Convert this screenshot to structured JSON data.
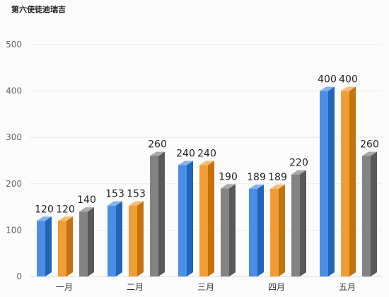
{
  "chart_data": {
    "type": "bar",
    "title": "第六使徒迪瑞吉",
    "categories": [
      "一月",
      "二月",
      "三月",
      "四月",
      "五月"
    ],
    "series": [
      {
        "values": [
          120,
          153,
          240,
          189,
          400
        ],
        "color": "#2a7be0"
      },
      {
        "values": [
          120,
          153,
          240,
          189,
          400
        ],
        "color": "#ed8c13"
      },
      {
        "values": [
          140,
          260,
          190,
          220,
          260
        ],
        "color": "#6e6c6c"
      }
    ],
    "ylim": [
      0,
      500
    ],
    "yticks": [
      0,
      100,
      200,
      300,
      400,
      500
    ],
    "grid": true,
    "style": "3d-column",
    "data_labels": true
  }
}
